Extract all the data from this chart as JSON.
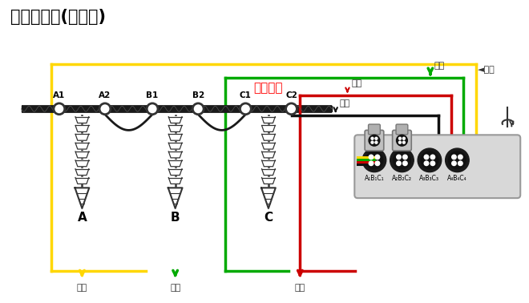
{
  "title": "断口接线图(六断口)",
  "title_fontsize": 15,
  "bg_color": "#ffffff",
  "wire_colors": {
    "yellow": "#FFD700",
    "green": "#00AA00",
    "red": "#CC0000",
    "black": "#111111"
  },
  "terminals": {
    "A1": 70,
    "A2": 128,
    "B1": 188,
    "B2": 246,
    "C1": 306,
    "C2": 364
  },
  "insulators": [
    [
      "A",
      99
    ],
    [
      "B",
      217
    ],
    [
      "C",
      335
    ]
  ],
  "connectors": [
    "A₁B₁C₁",
    "A₂B₂C₂",
    "A₃B₃C₃",
    "A₄B₄C₄"
  ],
  "note_fontsize": 8,
  "label_fontsize": 10
}
